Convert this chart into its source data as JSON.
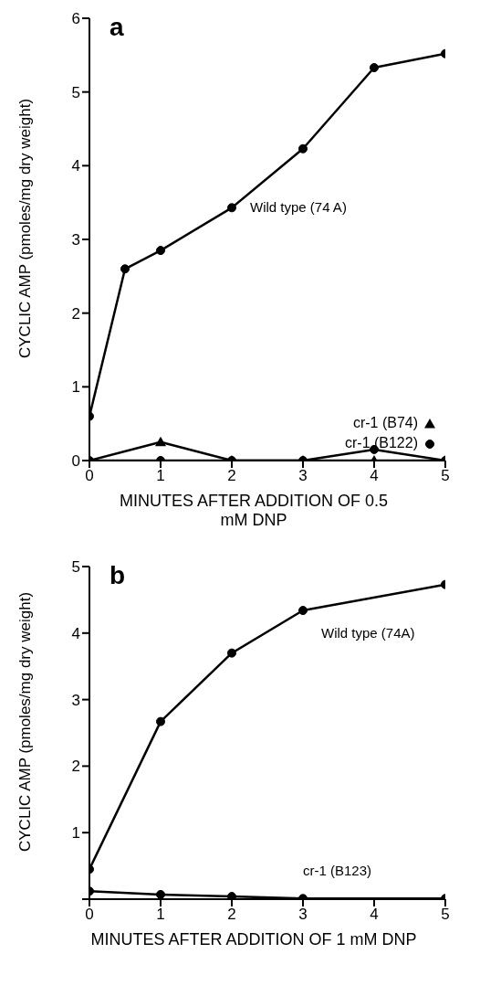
{
  "chart_data": [
    {
      "type": "line",
      "title": "a",
      "xlabel": "MINUTES AFTER ADDITION OF 0.5 mM DNP",
      "ylabel": "CYCLIC AMP (pmoles/mg dry weight)",
      "xlim": [
        0,
        5
      ],
      "xticks": [
        0,
        1,
        2,
        3,
        4,
        5
      ],
      "ylim": [
        0,
        6
      ],
      "yticks": [
        0,
        1,
        2,
        3,
        4,
        5,
        6
      ],
      "grid": false,
      "legend": "bottom right",
      "line_style": "solid",
      "series": [
        {
          "name": "Wild type (74 A)",
          "color": "#000000",
          "marker": "circle",
          "x": [
            0,
            0.5,
            1,
            2,
            3,
            4,
            5
          ],
          "values": [
            0.6,
            2.6,
            2.85,
            3.43,
            4.23,
            5.33,
            5.52
          ]
        },
        {
          "name": "cr-1 (B122)",
          "color": "#000000",
          "marker": "circle",
          "x": [
            0,
            1,
            2,
            3,
            4,
            5
          ],
          "values": [
            0,
            0,
            0,
            0,
            0.15,
            0
          ]
        },
        {
          "name": "cr-1 (B74)",
          "color": "#000000",
          "marker": "triangle",
          "x": [
            0,
            1,
            2,
            3,
            4,
            5
          ],
          "values": [
            0,
            0.25,
            0,
            0,
            0,
            0
          ]
        }
      ]
    },
    {
      "type": "line",
      "title": "b",
      "xlabel": "MINUTES AFTER ADDITION OF 1 mM DNP",
      "ylabel": "CYCLIC AMP (pmoles/mg dry weight)",
      "xlim": [
        0,
        5
      ],
      "xticks": [
        0,
        1,
        2,
        3,
        4,
        5
      ],
      "ylim": [
        0,
        5
      ],
      "yticks": [
        {
          "value": 0,
          "label": null
        },
        1,
        2,
        3,
        4,
        5
      ],
      "grid": false,
      "legend": false,
      "line_style": "solid",
      "series": [
        {
          "name": "Wild type (74A)",
          "color": "#000000",
          "marker": "circle",
          "x": [
            0,
            1,
            2,
            3,
            5
          ],
          "values": [
            0.45,
            2.67,
            3.7,
            4.34,
            4.73
          ]
        },
        {
          "name": "cr-1 (B123)",
          "color": "#000000",
          "marker": "circle",
          "x": [
            0,
            1,
            2,
            3,
            5
          ],
          "values": [
            0.12,
            0.07,
            0.04,
            0.01,
            0.01
          ]
        }
      ]
    }
  ]
}
